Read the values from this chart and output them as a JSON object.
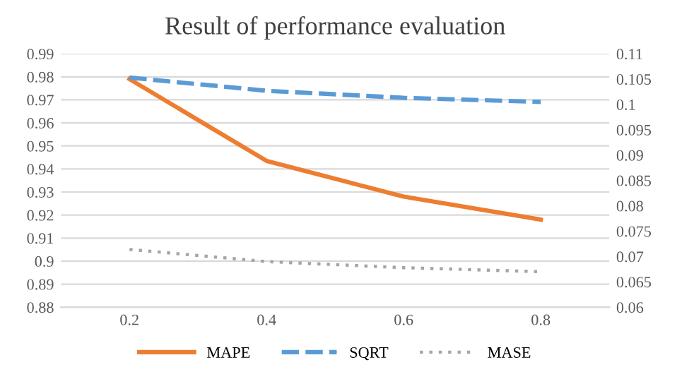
{
  "chart_data": {
    "type": "line",
    "title": "Result of performance evaluation",
    "categories": [
      "0.2",
      "0.4",
      "0.6",
      "0.8"
    ],
    "series": [
      {
        "name": "MAPE",
        "color": "#ed7d31",
        "values": [
          0.979,
          0.9435,
          0.928,
          0.918
        ],
        "line_style": "solid"
      },
      {
        "name": "SQRT",
        "color": "#5b9bd5",
        "values": [
          0.1053,
          0.1027,
          0.1013,
          0.1005
        ],
        "line_style": "dashed",
        "axis": "y2"
      },
      {
        "name": "MASE",
        "color": "#a5a5a5",
        "values": [
          0.0714,
          0.069,
          0.0678,
          0.067
        ],
        "line_style": "dotted",
        "axis": "y2"
      }
    ],
    "ylim": [
      0.88,
      0.99
    ],
    "yticks": [
      0.88,
      0.89,
      0.9,
      0.91,
      0.92,
      0.93,
      0.94,
      0.95,
      0.96,
      0.97,
      0.98,
      0.99
    ],
    "y2lim": [
      0.06,
      0.11
    ],
    "y2ticks": [
      0.06,
      0.065,
      0.07,
      0.075,
      0.08,
      0.085,
      0.09,
      0.095,
      0.1,
      0.105,
      0.11
    ],
    "grid": "y",
    "legend": "bottom"
  }
}
